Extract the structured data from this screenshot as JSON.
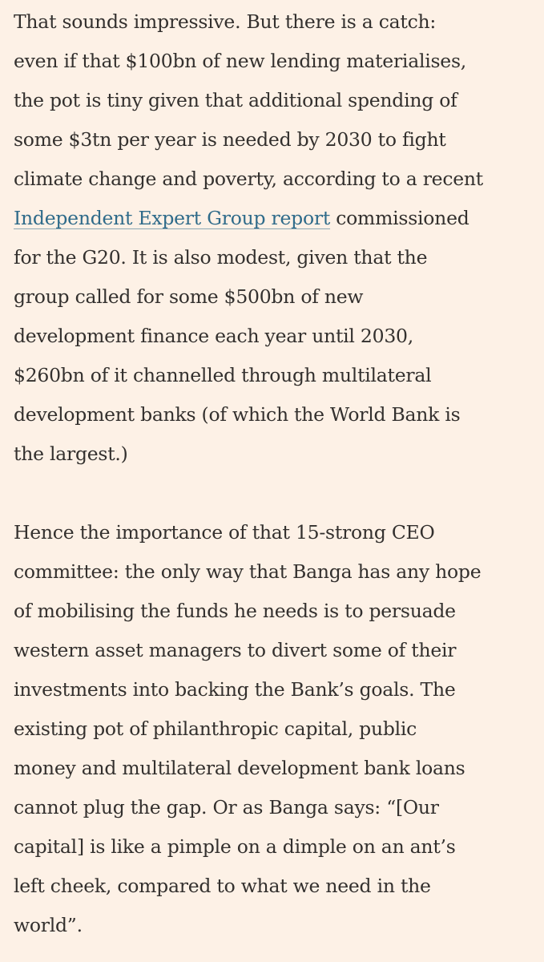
{
  "article": {
    "paragraph_1": {
      "line_01": "That sounds impressive. But there is a catch:",
      "line_02": "even if that $100bn of new lending materialises,",
      "line_03": "the pot is tiny given that additional spending of",
      "line_04": "some $3tn per year is needed by 2030 to fight",
      "line_05": "climate change and poverty, according to a recent",
      "line_06_link": "Independent Expert Group report",
      "line_06_rest": " commissioned",
      "line_07": "for the G20. It is also modest, given that the",
      "line_08": "group called for some $500bn of new",
      "line_09": "development finance each year until 2030,",
      "line_10": "$260bn of it channelled through multilateral",
      "line_11": "development banks (of which the World Bank is",
      "line_12": "the largest.)"
    },
    "paragraph_2": {
      "line_01": "Hence the importance of that 15-strong CEO",
      "line_02": "committee: the only way that Banga has any hope",
      "line_03": "of mobilising the funds he needs is to persuade",
      "line_04": "western asset managers to divert some of their",
      "line_05": "investments into backing the Bank’s goals. The",
      "line_06": "existing pot of philanthropic capital, public",
      "line_07": "money and multilateral development bank loans",
      "line_08": "cannot plug the gap. Or as Banga says: “[Our",
      "line_09": "capital] is like a pimple on a dimple on an ant’s",
      "line_10": "left cheek, compared to what we need in the",
      "line_11": "world”."
    }
  },
  "colors": {
    "background": "#fdf1e6",
    "text": "#33302e",
    "link": "#2f6b8a"
  }
}
